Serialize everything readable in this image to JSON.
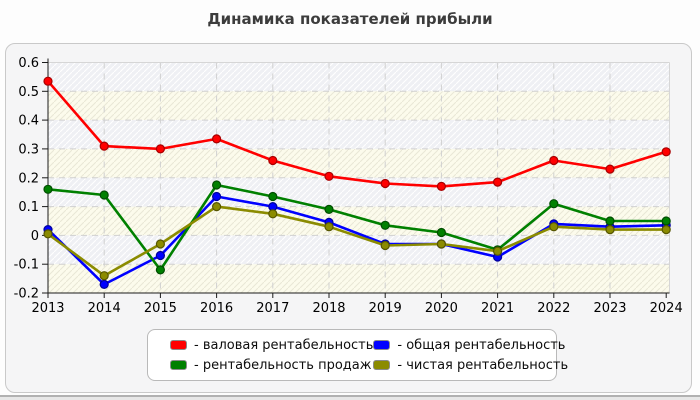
{
  "title": "Динамика показателей прибыли",
  "chart_data": {
    "type": "line",
    "x_labels": [
      "2013",
      "2014",
      "2015",
      "2016",
      "2017",
      "2018",
      "2019",
      "2020",
      "2021",
      "2022",
      "2023",
      "2024"
    ],
    "y_tick_labels": [
      "0.6",
      "0.5",
      "0.4",
      "0.3",
      "0.2",
      "0.1",
      "0",
      "-0.1",
      "-0.2"
    ],
    "ylim": [
      -0.2,
      0.6
    ],
    "grid": true,
    "legend_position": "bottom",
    "plot_bg": "#fcfbec",
    "band_bg": "#eff0f4",
    "grid_color": "#d0d0d0",
    "axis_color": "#1a1a1a",
    "series": [
      {
        "name": "валовая рентабельность",
        "color": "#ff0000",
        "edge": "#a80000",
        "values": [
          0.535,
          0.31,
          0.3,
          0.335,
          0.26,
          0.205,
          0.18,
          0.17,
          0.185,
          0.26,
          0.23,
          0.29
        ]
      },
      {
        "name": "общая рентабельность",
        "color": "#0000ff",
        "edge": "#00009a",
        "values": [
          0.02,
          -0.17,
          -0.07,
          0.135,
          0.1,
          0.045,
          -0.03,
          -0.03,
          -0.075,
          0.04,
          0.03,
          0.035
        ]
      },
      {
        "name": "рентабельность продаж",
        "color": "#008000",
        "edge": "#004d00",
        "values": [
          0.16,
          0.14,
          -0.12,
          0.175,
          0.135,
          0.09,
          0.035,
          0.01,
          -0.05,
          0.11,
          0.05,
          0.05
        ]
      },
      {
        "name": "чистая рентабельность",
        "color": "#8b8b00",
        "edge": "#565600",
        "values": [
          0.005,
          -0.14,
          -0.03,
          0.1,
          0.075,
          0.03,
          -0.035,
          -0.03,
          -0.055,
          0.03,
          0.02,
          0.02
        ]
      }
    ]
  },
  "legend": {
    "items": [
      {
        "label": "- валовая рентабельность",
        "color": "#ff0000"
      },
      {
        "label": "- рентабельность продаж",
        "color": "#008000"
      },
      {
        "label": "- общая рентабельность",
        "color": "#0000ff"
      },
      {
        "label": "- чистая рентабельность",
        "color": "#8b8b00"
      }
    ]
  }
}
